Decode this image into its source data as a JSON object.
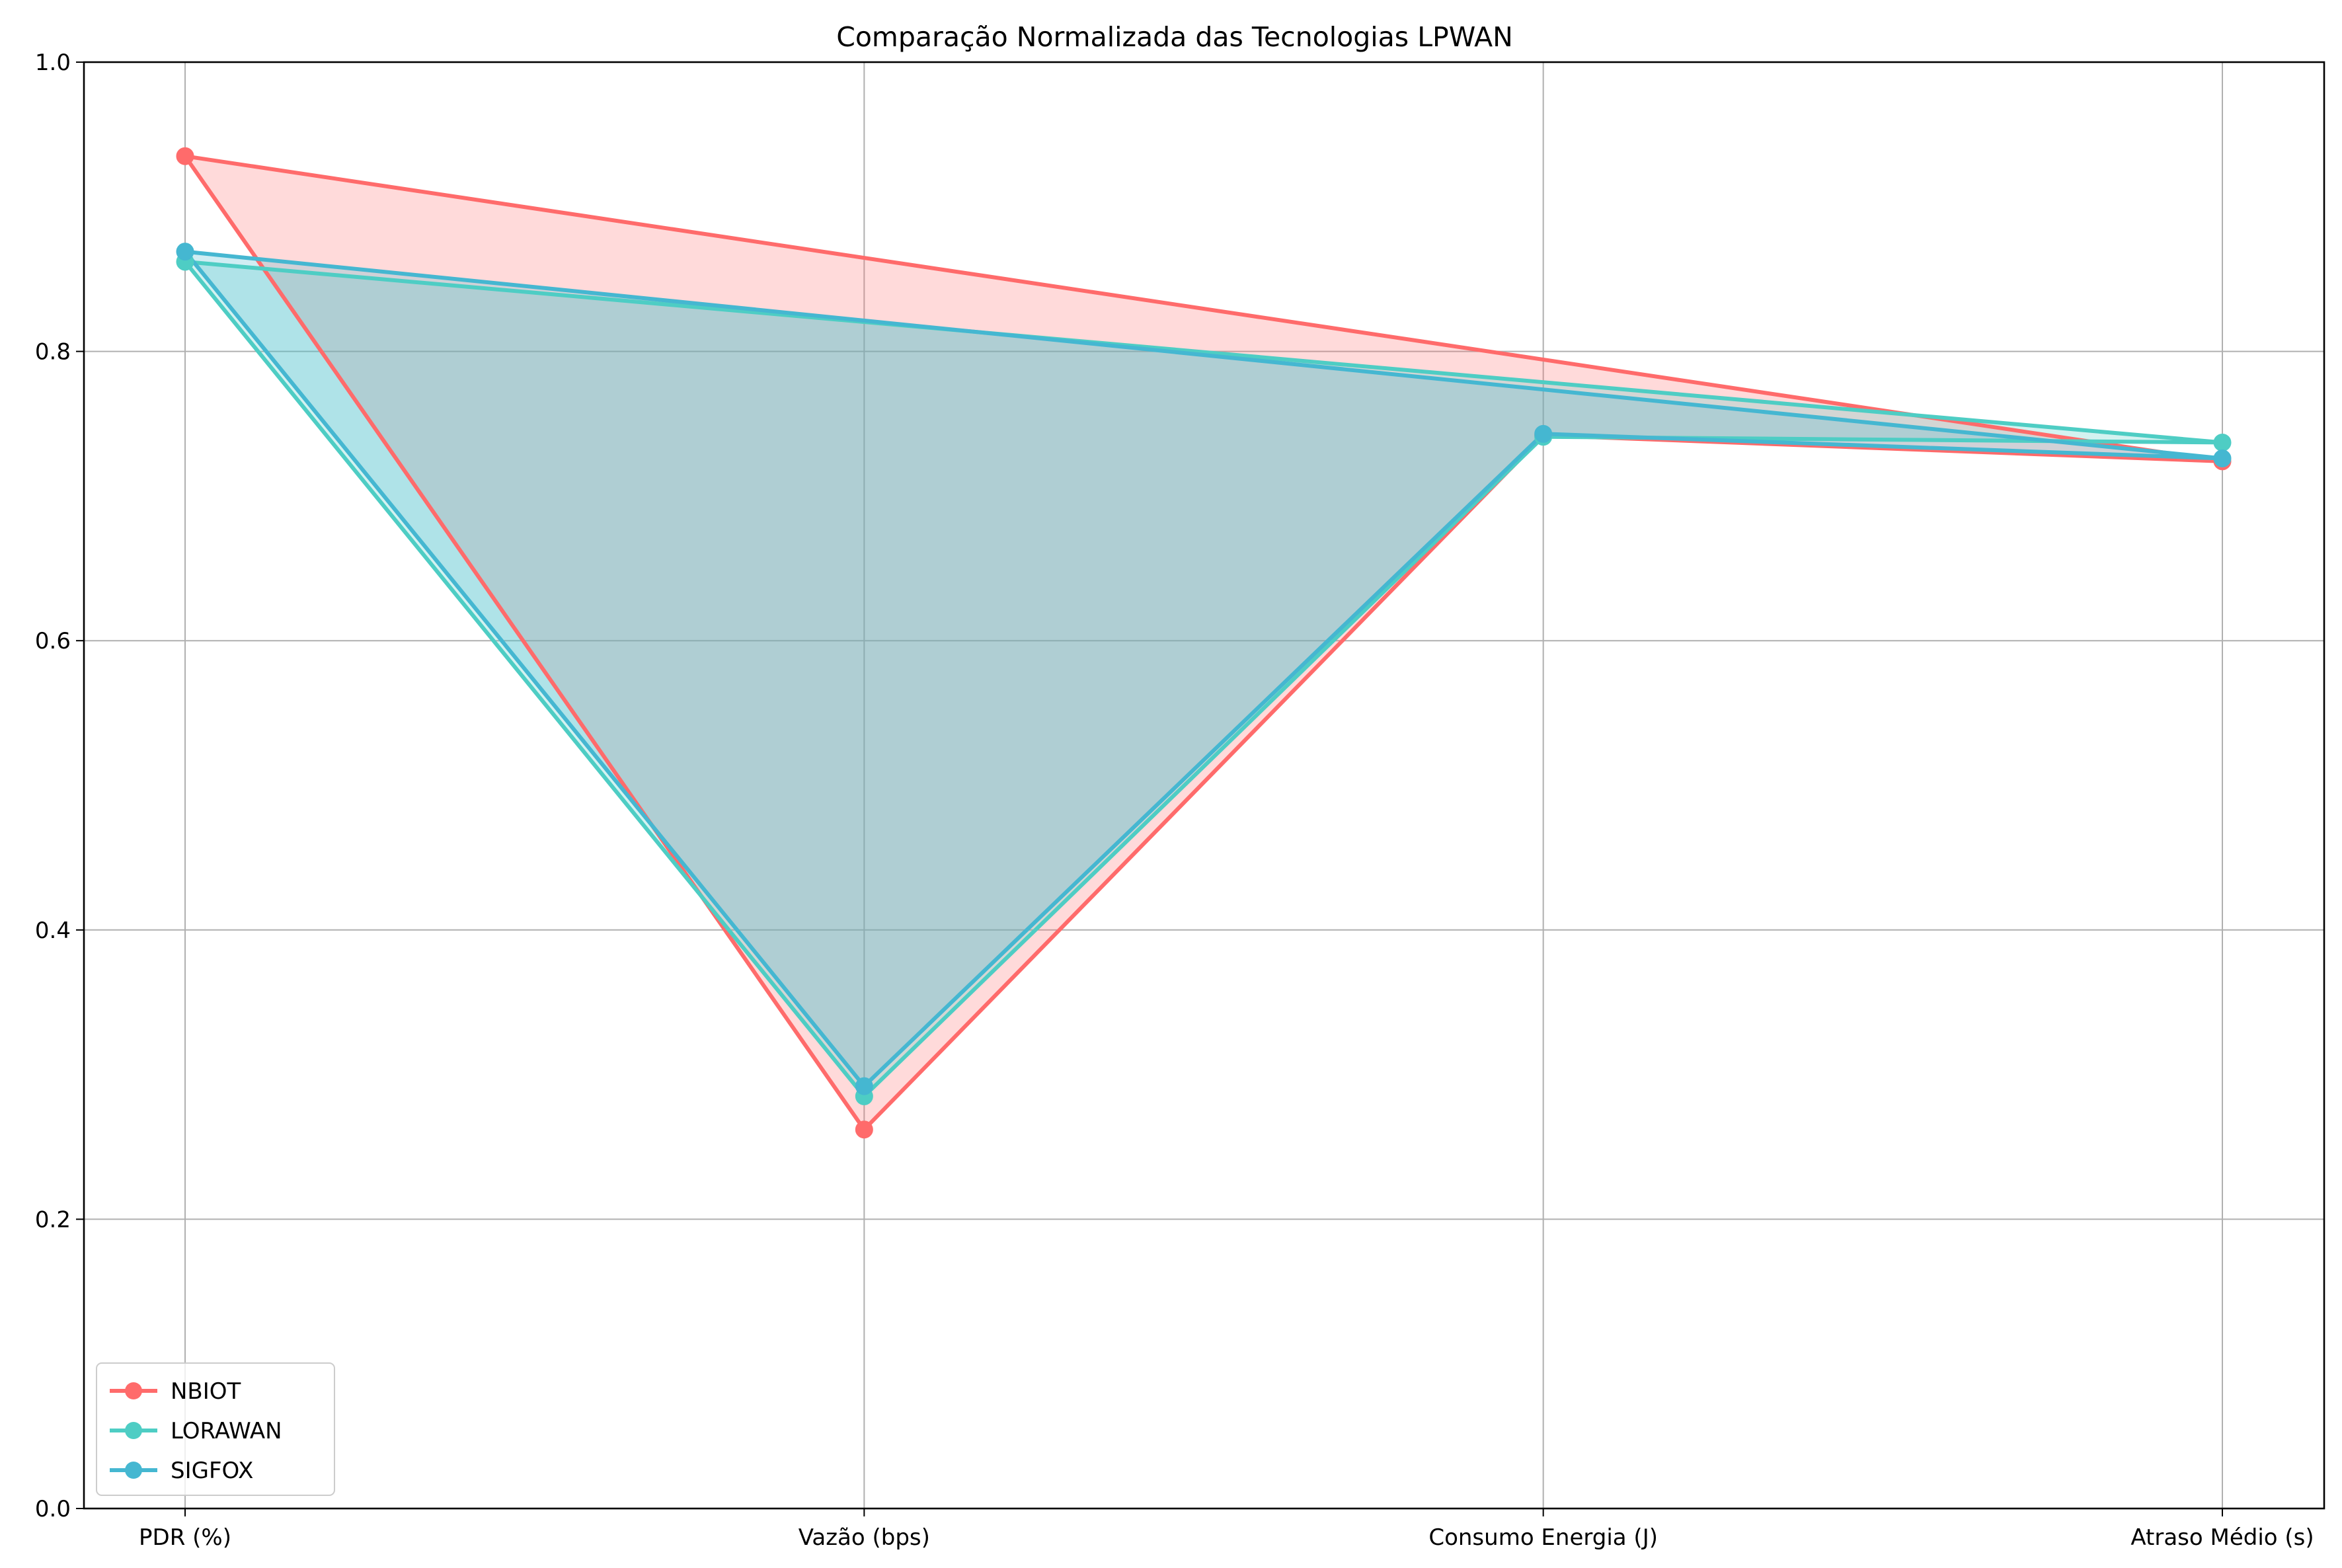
{
  "chart_data": {
    "type": "line",
    "title": "Comparação Normalizada das Tecnologias LPWAN",
    "xlabel": "",
    "ylabel": "",
    "categories": [
      "PDR (%)",
      "Vazão (bps)",
      "Consumo Energia (J)",
      "Atraso Médio (s)"
    ],
    "ylim": [
      0,
      1.0
    ],
    "yticks": [
      "0.0",
      "0.2",
      "0.4",
      "0.6",
      "0.8",
      "1.0"
    ],
    "grid": true,
    "legend_position": "bottom-left",
    "closed_polygon_fill": true,
    "series": [
      {
        "name": "NBIOT",
        "color": "#ff6b6b",
        "values": [
          0.935,
          0.262,
          0.742,
          0.724
        ]
      },
      {
        "name": "LORAWAN",
        "color": "#4ecdc4",
        "values": [
          0.862,
          0.285,
          0.741,
          0.737
        ]
      },
      {
        "name": "SIGFOX",
        "color": "#45b7d1",
        "values": [
          0.869,
          0.292,
          0.743,
          0.726
        ]
      }
    ]
  }
}
